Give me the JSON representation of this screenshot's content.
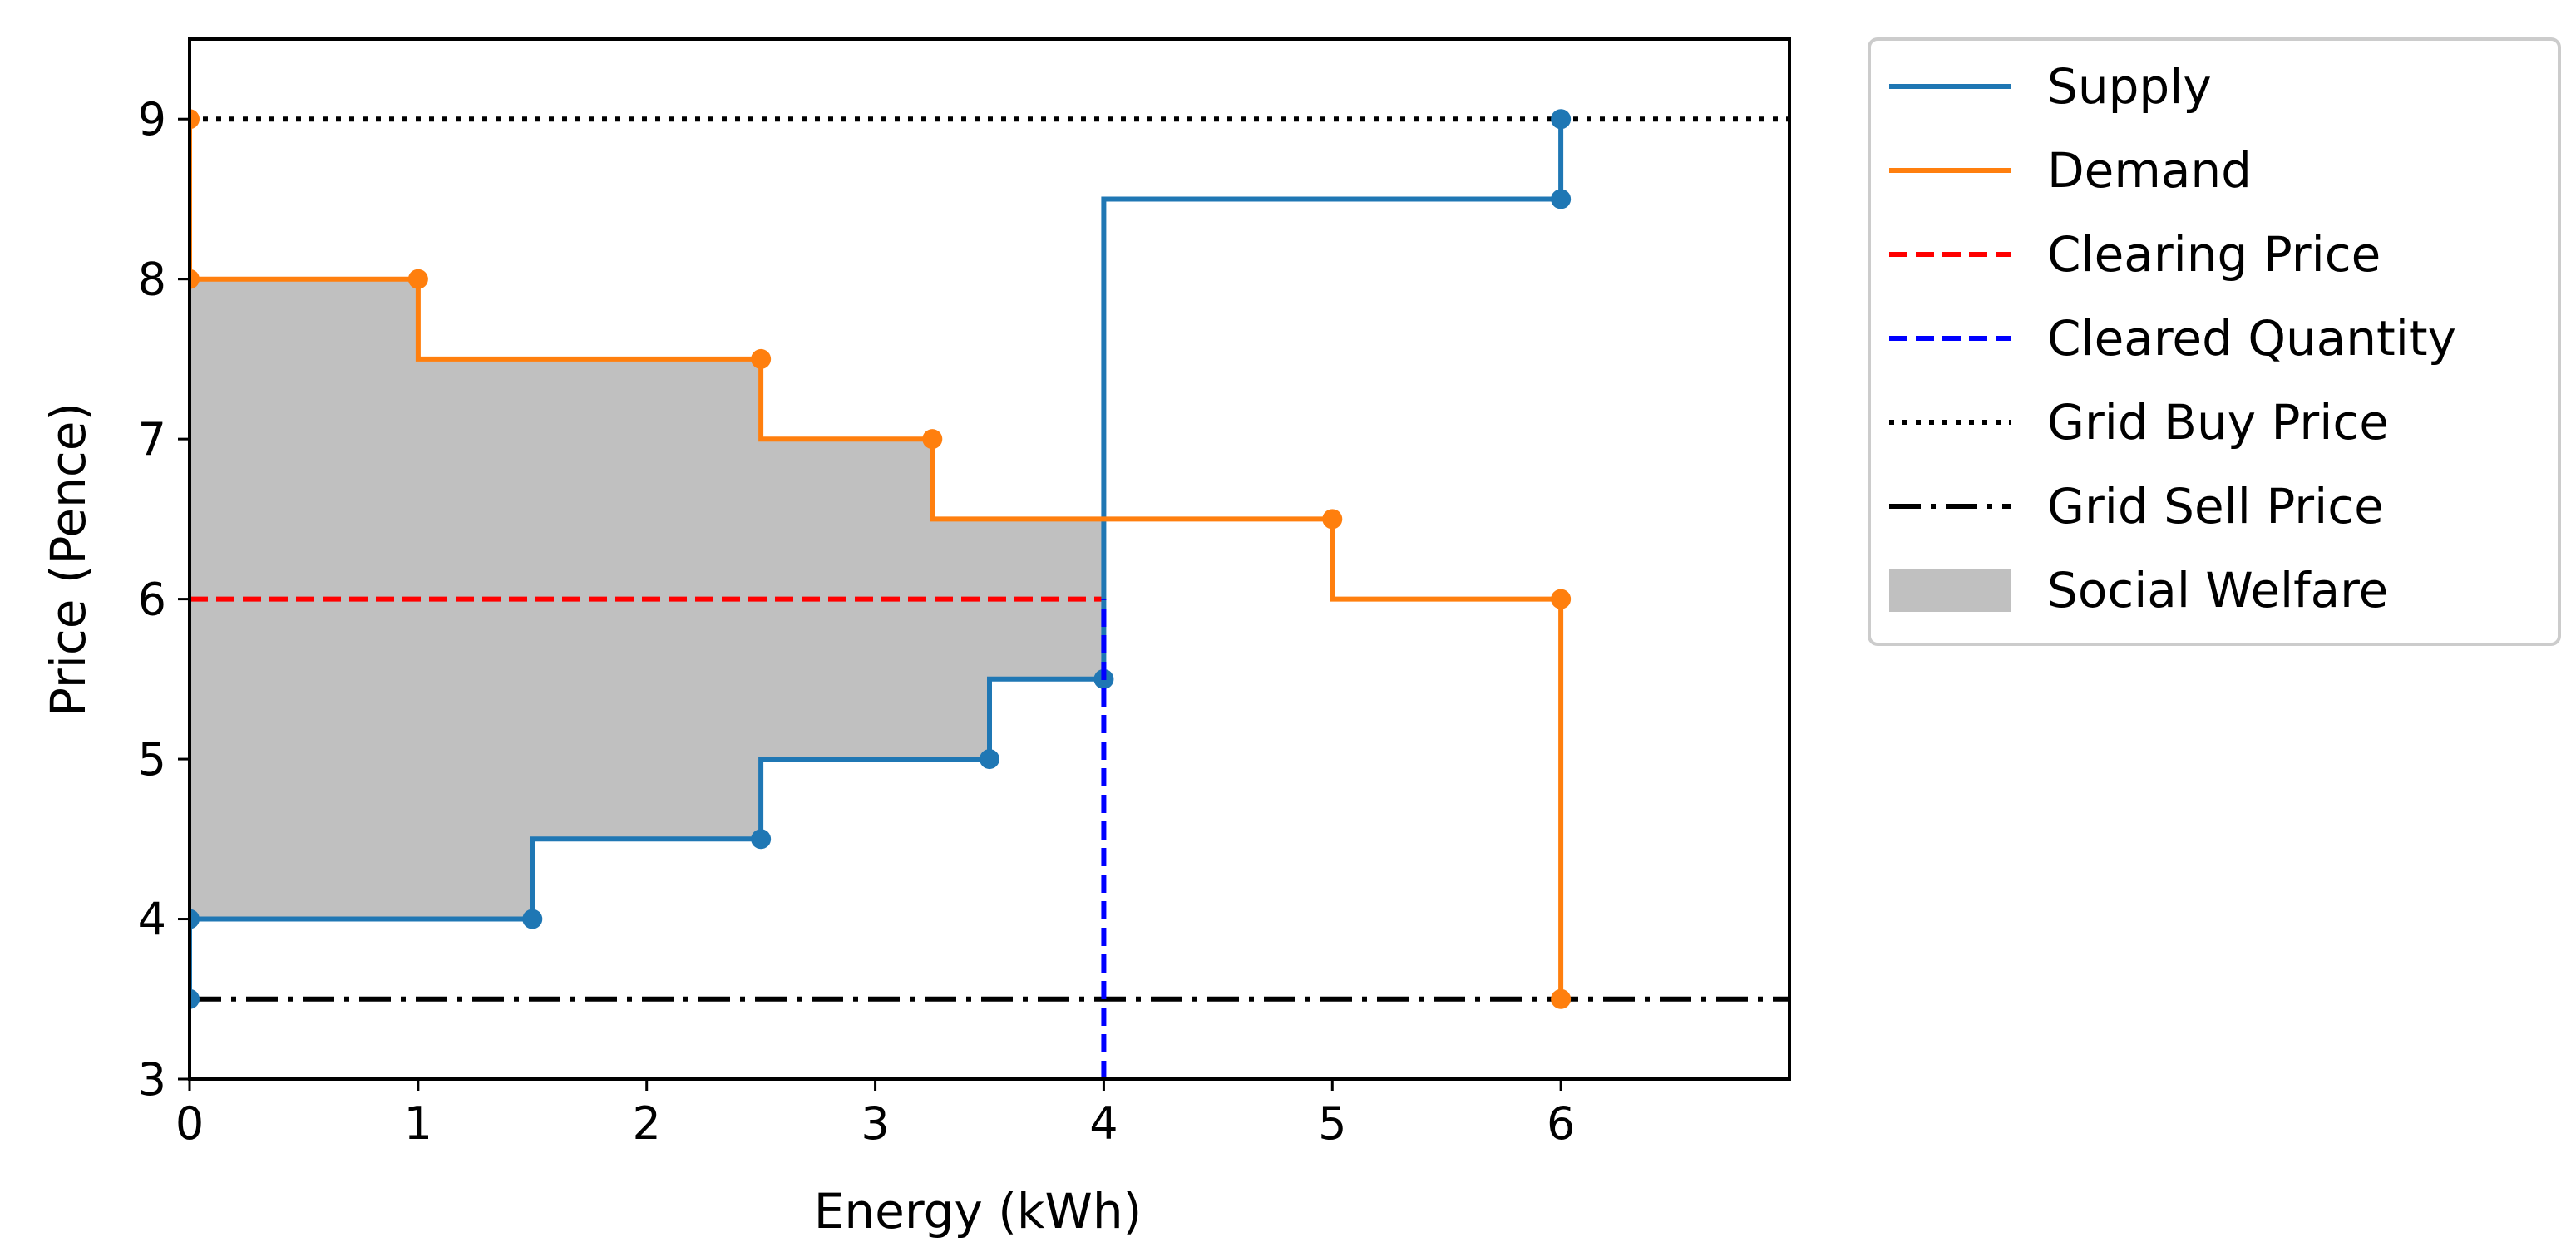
{
  "chart_data": {
    "type": "step",
    "xlabel": "Energy (kWh)",
    "ylabel": "Price (Pence)",
    "xlim": [
      0,
      7
    ],
    "ylim": [
      3,
      9.5
    ],
    "xticks": [
      0,
      1,
      2,
      3,
      4,
      5,
      6
    ],
    "yticks": [
      3,
      4,
      5,
      6,
      7,
      8,
      9
    ],
    "legend_position": "outside-right-top",
    "series": [
      {
        "name": "Supply",
        "color": "#1f77b4",
        "steps": [
          [
            0,
            3.5
          ],
          [
            0,
            4
          ],
          [
            1.5,
            4
          ],
          [
            1.5,
            4.5
          ],
          [
            2.5,
            4.5
          ],
          [
            2.5,
            5
          ],
          [
            3.5,
            5
          ],
          [
            3.5,
            5.5
          ],
          [
            4,
            5.5
          ],
          [
            4,
            8.5
          ],
          [
            6,
            8.5
          ],
          [
            6,
            9
          ]
        ],
        "markers": [
          [
            0,
            3.5
          ],
          [
            0,
            4
          ],
          [
            1.5,
            4
          ],
          [
            2.5,
            4.5
          ],
          [
            3.5,
            5
          ],
          [
            4,
            5.5
          ],
          [
            6,
            8.5
          ],
          [
            6,
            9
          ]
        ]
      },
      {
        "name": "Demand",
        "color": "#ff7f0e",
        "steps": [
          [
            0,
            9
          ],
          [
            0,
            8
          ],
          [
            1,
            8
          ],
          [
            1,
            7.5
          ],
          [
            2.5,
            7.5
          ],
          [
            2.5,
            7
          ],
          [
            3.25,
            7
          ],
          [
            3.25,
            6.5
          ],
          [
            5,
            6.5
          ],
          [
            5,
            6
          ],
          [
            6,
            6
          ],
          [
            6,
            3.5
          ]
        ],
        "markers": [
          [
            0,
            9
          ],
          [
            0,
            8
          ],
          [
            1,
            8
          ],
          [
            2.5,
            7.5
          ],
          [
            3.25,
            7
          ],
          [
            5,
            6.5
          ],
          [
            6,
            6
          ],
          [
            6,
            3.5
          ]
        ]
      }
    ],
    "clearing_price": {
      "name": "Clearing Price",
      "value": 6,
      "x_range": [
        0,
        4
      ],
      "color": "#ff0000"
    },
    "cleared_quantity": {
      "name": "Cleared Quantity",
      "value": 4,
      "y_range": [
        3,
        6
      ],
      "color": "#0000ff"
    },
    "grid_buy_price": {
      "name": "Grid Buy Price",
      "value": 9,
      "color": "#000000"
    },
    "grid_sell_price": {
      "name": "Grid Sell Price",
      "value": 3.5,
      "color": "#000000"
    },
    "social_welfare": {
      "name": "Social Welfare",
      "color": "#c0c0c0",
      "upper": [
        [
          0,
          8
        ],
        [
          1,
          8
        ],
        [
          1,
          7.5
        ],
        [
          2.5,
          7.5
        ],
        [
          2.5,
          7
        ],
        [
          3.25,
          7
        ],
        [
          3.25,
          6.5
        ],
        [
          4,
          6.5
        ]
      ],
      "lower": [
        [
          0,
          4
        ],
        [
          1.5,
          4
        ],
        [
          1.5,
          4.5
        ],
        [
          2.5,
          4.5
        ],
        [
          2.5,
          5
        ],
        [
          3.5,
          5
        ],
        [
          3.5,
          5.5
        ],
        [
          4,
          5.5
        ]
      ]
    },
    "legend": [
      "Supply",
      "Demand",
      "Clearing Price",
      "Cleared Quantity",
      "Grid Buy Price",
      "Grid Sell Price",
      "Social Welfare"
    ]
  }
}
